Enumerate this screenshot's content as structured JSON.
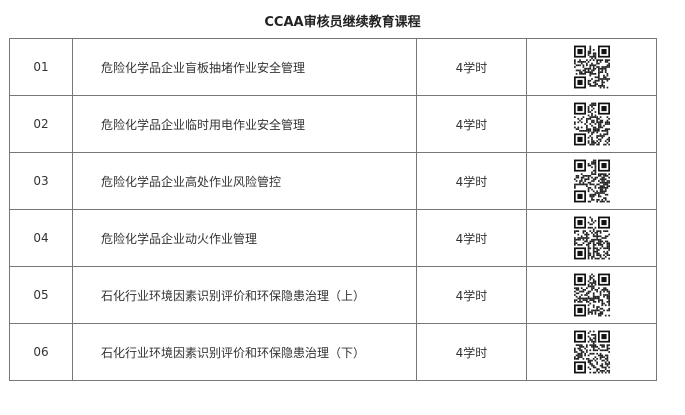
{
  "title": "CCAA审核员继续教育课程",
  "courses": [
    {
      "num": "01",
      "name": "危险化学品企业盲板抽堵作业安全管理",
      "hours": "4学时"
    },
    {
      "num": "02",
      "name": "危险化学品企业临时用电作业安全管理",
      "hours": "4学时"
    },
    {
      "num": "03",
      "name": "危险化学品企业高处作业风险管控",
      "hours": "4学时"
    },
    {
      "num": "04",
      "name": "危险化学品企业动火作业管理",
      "hours": "4学时"
    },
    {
      "num": "05",
      "name": "石化行业环境因素识别评价和环保隐患治理（上）",
      "hours": "4学时"
    },
    {
      "num": "06",
      "name": "石化行业环境因素识别评价和环保隐患治理（下）",
      "hours": "4学时"
    }
  ]
}
